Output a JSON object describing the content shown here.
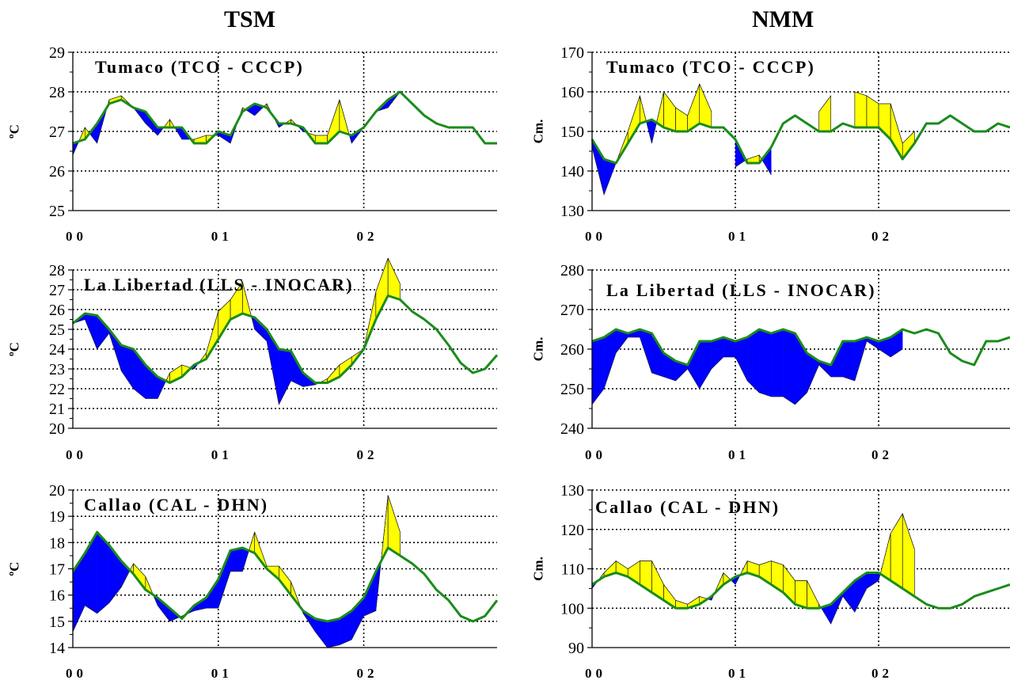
{
  "headers": {
    "left": "TSM",
    "right": "NMM"
  },
  "colors": {
    "climatology_line": "#1a8c1a",
    "positive_fill": "#ffff00",
    "negative_fill": "#0000ff",
    "grid": "#000000"
  },
  "chart_data": [
    {
      "type": "area",
      "title": "Tumaco (TCO - CCCP)",
      "ylabel": "ºC",
      "ylim": [
        25,
        29
      ],
      "yticks": [
        25,
        26,
        27,
        28,
        29
      ],
      "xlim": [
        0,
        35
      ],
      "xtick_positions": [
        0,
        12,
        24
      ],
      "xtick_labels": [
        "00",
        "01",
        "02"
      ],
      "vertical_gridlines": [
        12,
        24
      ],
      "climatology": {
        "x": [
          0,
          1,
          2,
          3,
          4,
          5,
          6,
          7,
          8,
          9,
          10,
          11,
          12,
          13,
          14,
          15,
          16,
          17,
          18,
          19,
          20,
          21,
          22,
          23,
          24,
          25,
          26,
          27,
          28,
          29,
          30,
          31,
          32,
          33,
          34,
          35
        ],
        "y": [
          26.7,
          26.8,
          27.2,
          27.7,
          27.8,
          27.6,
          27.5,
          27.1,
          27.1,
          27.1,
          26.7,
          26.7,
          27.0,
          26.9,
          27.5,
          27.7,
          27.6,
          27.2,
          27.2,
          27.1,
          26.7,
          26.7,
          27.0,
          26.9,
          27.1,
          27.5,
          27.8,
          28.0,
          27.7,
          27.4,
          27.2,
          27.1,
          27.1,
          27.1,
          26.7,
          26.7
        ]
      },
      "observed": {
        "x": [
          0,
          1,
          2,
          3,
          4,
          5,
          6,
          7,
          8,
          9,
          10,
          11,
          12,
          13,
          14,
          15,
          16,
          17,
          18,
          19,
          20,
          21,
          22,
          23,
          24,
          25,
          26,
          27
        ],
        "y": [
          26.4,
          27.1,
          26.7,
          27.8,
          27.9,
          27.6,
          27.2,
          26.9,
          27.3,
          26.8,
          26.8,
          26.9,
          26.9,
          26.7,
          27.6,
          27.4,
          27.7,
          27.1,
          27.3,
          27.0,
          26.9,
          26.9,
          27.8,
          26.7,
          27.1,
          27.5,
          27.6,
          28.0
        ]
      }
    },
    {
      "type": "area",
      "title": "La Libertad (LLS - INOCAR)",
      "ylabel": "ºC",
      "ylim": [
        20,
        28
      ],
      "yticks": [
        20,
        21,
        22,
        23,
        24,
        25,
        26,
        27,
        28
      ],
      "xlim": [
        0,
        35
      ],
      "xtick_positions": [
        0,
        12,
        24
      ],
      "xtick_labels": [
        "00",
        "01",
        "02"
      ],
      "vertical_gridlines": [
        12,
        24
      ],
      "climatology": {
        "x": [
          0,
          1,
          2,
          3,
          4,
          5,
          6,
          7,
          8,
          9,
          10,
          11,
          12,
          13,
          14,
          15,
          16,
          17,
          18,
          19,
          20,
          21,
          22,
          23,
          24,
          25,
          26,
          27,
          28,
          29,
          30,
          31,
          32,
          33,
          34,
          35
        ],
        "y": [
          25.3,
          25.8,
          25.7,
          25.0,
          24.2,
          24.0,
          23.2,
          22.6,
          22.3,
          22.6,
          23.2,
          23.5,
          24.5,
          25.5,
          25.8,
          25.6,
          25.0,
          24.0,
          23.9,
          22.8,
          22.3,
          22.3,
          22.6,
          23.2,
          24.0,
          25.5,
          26.7,
          26.5,
          25.9,
          25.5,
          25.0,
          24.2,
          23.3,
          22.8,
          23.0,
          23.7
        ]
      },
      "observed": {
        "x": [
          0,
          1,
          2,
          3,
          4,
          5,
          6,
          7,
          8,
          9,
          10,
          11,
          12,
          13,
          14,
          15,
          16,
          17,
          18,
          19,
          20,
          21,
          22,
          23,
          24,
          25,
          26,
          27
        ],
        "y": [
          25.3,
          25.5,
          24.0,
          24.8,
          22.9,
          22.0,
          21.5,
          21.5,
          22.8,
          23.2,
          23.0,
          23.8,
          25.9,
          26.5,
          27.4,
          25.0,
          24.4,
          21.2,
          22.4,
          22.1,
          22.2,
          22.5,
          23.2,
          23.6,
          24.0,
          26.9,
          28.6,
          27.3
        ]
      }
    },
    {
      "type": "area",
      "title": "Callao (CAL - DHN)",
      "ylabel": "ºC",
      "ylim": [
        14,
        20
      ],
      "yticks": [
        14,
        15,
        16,
        17,
        18,
        19,
        20
      ],
      "xlim": [
        0,
        35
      ],
      "xtick_positions": [
        0,
        12,
        24
      ],
      "xtick_labels": [
        "00",
        "01",
        "02"
      ],
      "vertical_gridlines": [
        12,
        24
      ],
      "climatology": {
        "x": [
          0,
          1,
          2,
          3,
          4,
          5,
          6,
          7,
          8,
          9,
          10,
          11,
          12,
          13,
          14,
          15,
          16,
          17,
          18,
          19,
          20,
          21,
          22,
          23,
          24,
          25,
          26,
          27,
          28,
          29,
          30,
          31,
          32,
          33,
          34,
          35
        ],
        "y": [
          16.9,
          17.6,
          18.4,
          17.9,
          17.3,
          16.8,
          16.2,
          15.9,
          15.5,
          15.1,
          15.6,
          15.9,
          16.6,
          17.7,
          17.8,
          17.6,
          17.0,
          16.6,
          16.0,
          15.4,
          15.1,
          15.0,
          15.1,
          15.4,
          15.9,
          16.9,
          17.8,
          17.5,
          17.2,
          16.8,
          16.2,
          15.8,
          15.2,
          15.0,
          15.2,
          15.8
        ]
      },
      "observed": {
        "x": [
          0,
          1,
          2,
          3,
          4,
          5,
          6,
          7,
          8,
          9,
          10,
          11,
          12,
          13,
          14,
          15,
          16,
          17,
          18,
          19,
          20,
          21,
          22,
          23,
          24,
          25,
          26,
          27
        ],
        "y": [
          14.6,
          15.6,
          15.3,
          15.7,
          16.3,
          17.2,
          16.7,
          15.6,
          15.0,
          15.2,
          15.4,
          15.5,
          15.5,
          16.9,
          16.9,
          18.4,
          17.1,
          17.1,
          16.5,
          15.3,
          14.6,
          14.0,
          14.1,
          14.3,
          15.2,
          15.4,
          19.8,
          18.4
        ]
      }
    },
    {
      "type": "area",
      "title": "Tumaco (TCO - CCCP)",
      "ylabel": "Cm.",
      "ylim": [
        130,
        170
      ],
      "yticks": [
        130,
        140,
        150,
        160,
        170
      ],
      "xlim": [
        0,
        35
      ],
      "xtick_positions": [
        0,
        12,
        24
      ],
      "xtick_labels": [
        "00",
        "01",
        "02"
      ],
      "vertical_gridlines": [
        12,
        24
      ],
      "climatology": {
        "x": [
          0,
          1,
          2,
          3,
          4,
          5,
          6,
          7,
          8,
          9,
          10,
          11,
          12,
          13,
          14,
          15,
          16,
          17,
          18,
          19,
          20,
          21,
          22,
          23,
          24,
          25,
          26,
          27,
          28,
          29,
          30,
          31,
          32,
          33,
          34,
          35
        ],
        "y": [
          148,
          143,
          142,
          147,
          152,
          153,
          151,
          150,
          150,
          152,
          151,
          151,
          148,
          142,
          142,
          146,
          152,
          154,
          152,
          150,
          150,
          152,
          151,
          151,
          151,
          148,
          143,
          147,
          152,
          152,
          154,
          152,
          150,
          150,
          152,
          151
        ]
      },
      "observed": {
        "x": [
          0,
          1,
          2,
          3,
          4,
          5,
          6,
          7,
          8,
          9,
          10,
          11,
          12,
          13,
          14,
          15,
          16,
          17,
          18,
          19,
          20,
          21,
          22,
          23,
          24,
          25,
          26,
          27
        ],
        "y": [
          146,
          134,
          142,
          150,
          159,
          147,
          160,
          156,
          154,
          162,
          155,
          null,
          141,
          143,
          144,
          139,
          null,
          null,
          null,
          155,
          159,
          null,
          160,
          159,
          157,
          157,
          147,
          150
        ]
      }
    },
    {
      "type": "area",
      "title": "La Libertad (LLS - INOCAR)",
      "ylabel": "Cm.",
      "ylim": [
        240,
        280
      ],
      "yticks": [
        240,
        250,
        260,
        270,
        280
      ],
      "xlim": [
        0,
        35
      ],
      "xtick_positions": [
        0,
        12,
        24
      ],
      "xtick_labels": [
        "00",
        "01",
        "02"
      ],
      "vertical_gridlines": [
        12,
        24
      ],
      "climatology": {
        "x": [
          0,
          1,
          2,
          3,
          4,
          5,
          6,
          7,
          8,
          9,
          10,
          11,
          12,
          13,
          14,
          15,
          16,
          17,
          18,
          19,
          20,
          21,
          22,
          23,
          24,
          25,
          26,
          27,
          28,
          29,
          30,
          31,
          32,
          33,
          34,
          35
        ],
        "y": [
          262,
          263,
          265,
          264,
          265,
          264,
          259,
          257,
          256,
          262,
          262,
          263,
          262,
          263,
          265,
          264,
          265,
          264,
          259,
          257,
          256,
          262,
          262,
          263,
          262,
          263,
          265,
          264,
          265,
          264,
          259,
          257,
          256,
          262,
          262,
          263
        ]
      },
      "observed": {
        "x": [
          0,
          1,
          2,
          3,
          4,
          5,
          6,
          7,
          8,
          9,
          10,
          11,
          12,
          13,
          14,
          15,
          16,
          17,
          18,
          19,
          20,
          21,
          22,
          23,
          24,
          25,
          26,
          27
        ],
        "y": [
          246,
          250,
          259,
          263,
          263,
          254,
          253,
          252,
          255,
          250,
          255,
          258,
          258,
          252,
          249,
          248,
          248,
          246,
          249,
          256,
          253,
          253,
          252,
          262,
          260,
          258,
          260,
          null
        ]
      }
    },
    {
      "type": "area",
      "title": "Callao (CAL - DHN)",
      "ylabel": "Cm.",
      "ylim": [
        90,
        130
      ],
      "yticks": [
        90,
        100,
        110,
        120,
        130
      ],
      "xlim": [
        0,
        35
      ],
      "xtick_positions": [
        0,
        12,
        24
      ],
      "xtick_labels": [
        "00",
        "01",
        "02"
      ],
      "vertical_gridlines": [
        12,
        24
      ],
      "climatology": {
        "x": [
          0,
          1,
          2,
          3,
          4,
          5,
          6,
          7,
          8,
          9,
          10,
          11,
          12,
          13,
          14,
          15,
          16,
          17,
          18,
          19,
          20,
          21,
          22,
          23,
          24,
          25,
          26,
          27,
          28,
          29,
          30,
          31,
          32,
          33,
          34,
          35
        ],
        "y": [
          106,
          108,
          109,
          108,
          106,
          104,
          102,
          100,
          100,
          101,
          103,
          106,
          108,
          109,
          108,
          106,
          104,
          101,
          100,
          100,
          101,
          104,
          107,
          109,
          109,
          107,
          105,
          103,
          101,
          100,
          100,
          101,
          103,
          104,
          105,
          106
        ]
      },
      "observed": {
        "x": [
          0,
          1,
          2,
          3,
          4,
          5,
          6,
          7,
          8,
          9,
          10,
          11,
          12,
          13,
          14,
          15,
          16,
          17,
          18,
          19,
          20,
          21,
          22,
          23,
          24,
          25,
          26,
          27
        ],
        "y": [
          105,
          109,
          112,
          110,
          112,
          112,
          106,
          102,
          101,
          103,
          102,
          109,
          106,
          112,
          111,
          112,
          111,
          107,
          107,
          101,
          96,
          103,
          99,
          105,
          107,
          119,
          124,
          115
        ]
      }
    }
  ]
}
